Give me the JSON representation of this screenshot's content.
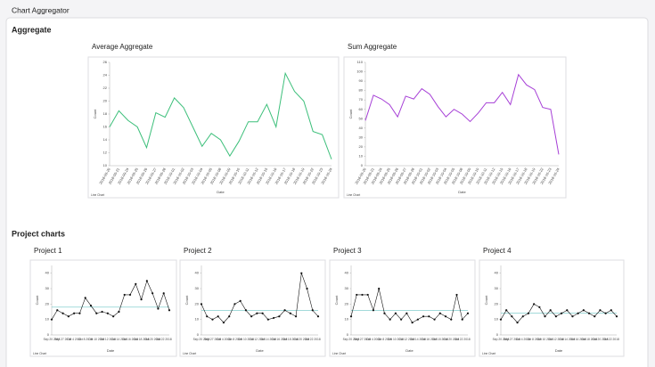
{
  "header": {
    "title": "Chart Aggregator"
  },
  "sections": [
    "Aggregate",
    "Project charts"
  ],
  "chart_data": [
    {
      "type": "line",
      "title": "Average Aggregate",
      "x_label": "Date",
      "y_label": "Count",
      "legend": "Line Chart",
      "color": "#3cbf7a",
      "categories": [
        "2018-09-20",
        "2018-09-21",
        "2018-09-24",
        "2018-09-25",
        "2018-09-26",
        "2018-09-27",
        "2018-09-28",
        "2018-10-01",
        "2018-10-02",
        "2018-10-03",
        "2018-10-04",
        "2018-10-05",
        "2018-10-08",
        "2018-10-09",
        "2018-10-10",
        "2018-10-11",
        "2018-10-12",
        "2018-10-15",
        "2018-10-16",
        "2018-10-17",
        "2018-10-18",
        "2018-10-19",
        "2018-10-22",
        "2018-10-23",
        "2018-10-24"
      ],
      "values": [
        16,
        18.5,
        17,
        16,
        12.8,
        18.2,
        17.5,
        20.5,
        19,
        16,
        13,
        15,
        14,
        11.5,
        13.8,
        16.8,
        16.8,
        19.5,
        16,
        24.3,
        21.5,
        20,
        15.3,
        14.8,
        11
      ],
      "ylim": [
        10,
        26
      ],
      "yticks": [
        10,
        12,
        14,
        16,
        18,
        20,
        22,
        24,
        26
      ]
    },
    {
      "type": "line",
      "title": "Sum Aggregate",
      "x_label": "Date",
      "y_label": "Count",
      "legend": "Line Chart",
      "color": "#a63fd6",
      "categories": [
        "2018-09-20",
        "2018-09-21",
        "2018-09-24",
        "2018-09-25",
        "2018-09-26",
        "2018-09-27",
        "2018-09-28",
        "2018-10-01",
        "2018-10-02",
        "2018-10-03",
        "2018-10-04",
        "2018-10-05",
        "2018-10-08",
        "2018-10-09",
        "2018-10-10",
        "2018-10-11",
        "2018-10-12",
        "2018-10-15",
        "2018-10-16",
        "2018-10-17",
        "2018-10-18",
        "2018-10-19",
        "2018-10-22",
        "2018-10-23",
        "2018-10-24"
      ],
      "values": [
        48,
        75,
        71,
        65,
        52,
        74,
        71,
        82,
        76,
        63,
        52,
        60,
        55,
        47,
        56,
        67,
        67,
        78,
        65,
        97,
        86,
        81,
        62,
        60,
        12
      ],
      "ylim": [
        0,
        110
      ],
      "yticks": [
        0,
        10,
        20,
        30,
        40,
        50,
        60,
        70,
        80,
        90,
        100,
        110
      ]
    },
    {
      "type": "control",
      "title": "Project 1",
      "x_label": "Date",
      "y_label": "Count",
      "legend": "Line Chart",
      "color": "#111111",
      "center_color": "#6cc4c4",
      "center_line": 18,
      "categories": [
        "Sep 20 2018",
        null,
        "Sep 27 2018",
        null,
        "Oct 4 2018",
        null,
        "Oct 8 2018",
        null,
        "Oct 10 2018",
        null,
        "Oct 12 2018",
        null,
        "Oct 14 2018",
        null,
        "Oct 16 2018",
        null,
        "Oct 18 2018",
        null,
        "Oct 20 2018",
        null,
        "Oct 22 2018",
        null
      ],
      "values": [
        10,
        16,
        14,
        12,
        14,
        14,
        24,
        19,
        14,
        15,
        14,
        12,
        15,
        26,
        26,
        33,
        23,
        35,
        27,
        17,
        27,
        16
      ],
      "ylim": [
        0,
        45
      ],
      "yticks": [
        0,
        10,
        20,
        30,
        40
      ]
    },
    {
      "type": "control",
      "title": "Project 2",
      "x_label": "Date",
      "y_label": "Count",
      "legend": "Line Chart",
      "color": "#111111",
      "center_color": "#6cc4c4",
      "center_line": 16,
      "categories": [
        "Sep 20 2018",
        null,
        "Sep 27 2018",
        null,
        "Oct 4 2018",
        null,
        "Oct 8 2018",
        null,
        "Oct 10 2018",
        null,
        "Oct 12 2018",
        null,
        "Oct 14 2018",
        null,
        "Oct 16 2018",
        null,
        "Oct 18 2018",
        null,
        "Oct 20 2018",
        null,
        "Oct 22 2018",
        null
      ],
      "values": [
        20,
        12,
        10,
        12,
        8,
        12,
        20,
        22,
        16,
        12,
        14,
        14,
        10,
        11,
        12,
        16,
        14,
        12,
        40,
        30,
        16,
        12
      ],
      "ylim": [
        0,
        45
      ],
      "yticks": [
        0,
        10,
        20,
        30,
        40
      ]
    },
    {
      "type": "control",
      "title": "Project 3",
      "x_label": "Date",
      "y_label": "Count",
      "legend": "Line Chart",
      "color": "#111111",
      "center_color": "#6cc4c4",
      "center_line": 16,
      "categories": [
        "Sep 20 2018",
        null,
        "Sep 27 2018",
        null,
        "Oct 4 2018",
        null,
        "Oct 8 2018",
        null,
        "Oct 10 2018",
        null,
        "Oct 12 2018",
        null,
        "Oct 14 2018",
        null,
        "Oct 16 2018",
        null,
        "Oct 18 2018",
        null,
        "Oct 20 2018",
        null,
        "Oct 22 2018",
        null
      ],
      "values": [
        12,
        26,
        26,
        26,
        16,
        30,
        14,
        10,
        14,
        10,
        14,
        8,
        10,
        12,
        12,
        10,
        14,
        12,
        10,
        26,
        10,
        14
      ],
      "ylim": [
        0,
        45
      ],
      "yticks": [
        0,
        10,
        20,
        30,
        40
      ]
    },
    {
      "type": "control",
      "title": "Project 4",
      "x_label": "Date",
      "y_label": "Count",
      "legend": "Line Chart",
      "color": "#111111",
      "center_color": "#6cc4c4",
      "center_line": 14,
      "categories": [
        "Sep 20 2018",
        null,
        "Sep 27 2018",
        null,
        "Oct 4 2018",
        null,
        "Oct 8 2018",
        null,
        "Oct 10 2018",
        null,
        "Oct 12 2018",
        null,
        "Oct 14 2018",
        null,
        "Oct 16 2018",
        null,
        "Oct 18 2018",
        null,
        "Oct 20 2018",
        null,
        "Oct 22 2018",
        null
      ],
      "values": [
        10,
        16,
        12,
        8,
        12,
        14,
        20,
        18,
        12,
        16,
        12,
        14,
        16,
        12,
        14,
        16,
        14,
        12,
        16,
        14,
        16,
        12
      ],
      "ylim": [
        0,
        45
      ],
      "yticks": [
        0,
        10,
        20,
        30,
        40
      ]
    }
  ]
}
